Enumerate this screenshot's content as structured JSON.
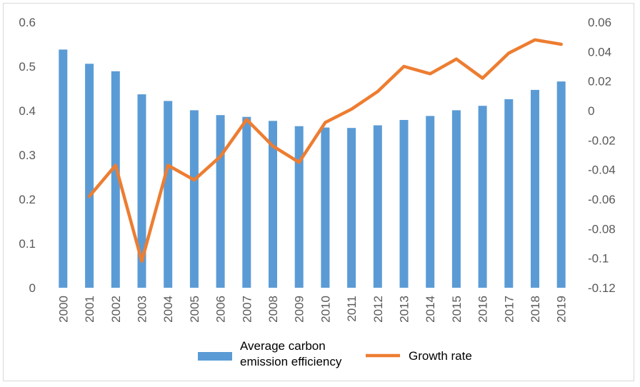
{
  "chart_data": {
    "type": "bar",
    "title": "",
    "xlabel": "",
    "ylabel": "",
    "categories": [
      "2000",
      "2001",
      "2002",
      "2003",
      "2004",
      "2005",
      "2006",
      "2007",
      "2008",
      "2009",
      "2010",
      "2011",
      "2012",
      "2013",
      "2014",
      "2015",
      "2016",
      "2017",
      "2018",
      "2019"
    ],
    "series": [
      {
        "name": "Average carbon emission efficiency",
        "name_lines": [
          "Average carbon",
          "emission efficiency"
        ],
        "type": "bar",
        "axis": "left",
        "color": "#5b9bd5",
        "values": [
          0.538,
          0.506,
          0.489,
          0.437,
          0.422,
          0.401,
          0.39,
          0.386,
          0.377,
          0.365,
          0.362,
          0.361,
          0.367,
          0.379,
          0.388,
          0.401,
          0.411,
          0.426,
          0.447,
          0.466
        ]
      },
      {
        "name": "Growth rate",
        "name_lines": [
          "Growth rate"
        ],
        "type": "line",
        "axis": "right",
        "color": "#ed7d31",
        "values": [
          null,
          -0.058,
          -0.037,
          -0.102,
          -0.037,
          -0.047,
          -0.031,
          -0.006,
          -0.024,
          -0.035,
          -0.008,
          0.001,
          0.013,
          0.03,
          0.025,
          0.035,
          0.022,
          0.039,
          0.048,
          0.045
        ]
      }
    ],
    "ylim_left": [
      0,
      0.6
    ],
    "yticks_left": [
      "0",
      "0.1",
      "0.2",
      "0.3",
      "0.4",
      "0.5",
      "0.6"
    ],
    "ylim_right": [
      -0.12,
      0.06
    ],
    "yticks_right": [
      "-0.12",
      "-0.1",
      "-0.08",
      "-0.06",
      "-0.04",
      "-0.02",
      "0",
      "0.02",
      "0.04",
      "0.06"
    ],
    "grid": false,
    "legend_position": "bottom"
  }
}
